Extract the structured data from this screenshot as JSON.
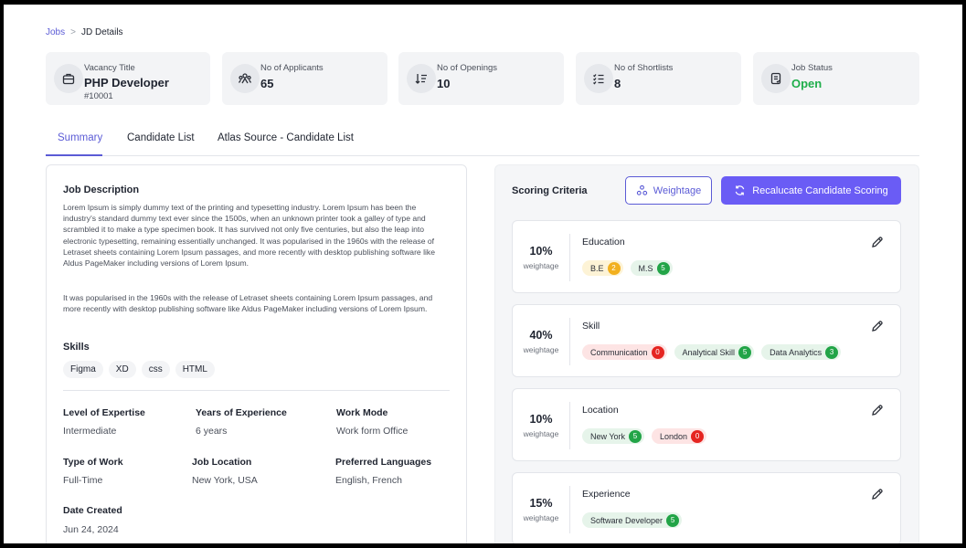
{
  "breadcrumb": {
    "root": "Jobs",
    "separator": ">",
    "current": "JD Details"
  },
  "stats": {
    "vacancy": {
      "label": "Vacancy Title",
      "value": "PHP Developer",
      "sub": "#10001",
      "icon": "briefcase-icon"
    },
    "applicants": {
      "label": "No of Applicants",
      "value": "65",
      "icon": "users-icon"
    },
    "openings": {
      "label": "No of Openings",
      "value": "10",
      "icon": "sort-list-icon"
    },
    "shortlists": {
      "label": "No of Shortlists",
      "value": "8",
      "icon": "checklist-icon"
    },
    "status": {
      "label": "Job Status",
      "value": "Open",
      "icon": "clipboard-icon",
      "color": "#1fae4b"
    }
  },
  "tabs": [
    {
      "label": "Summary",
      "active": true
    },
    {
      "label": "Candidate List",
      "active": false
    },
    {
      "label": "Atlas Source - Candidate List",
      "active": false
    }
  ],
  "job": {
    "description_title": "Job Description",
    "description_p1": "Lorem Ipsum is simply dummy text of the printing and typesetting industry. Lorem Ipsum has been the industry's standard dummy text ever since the 1500s, when an unknown printer took a galley of type and scrambled it to make a type specimen book. It has survived not only five centuries, but also the leap into electronic typesetting, remaining essentially unchanged. It was popularised in the 1960s with the release of Letraset sheets containing Lorem Ipsum passages, and more recently with desktop publishing software like Aldus PageMaker including versions of Lorem Ipsum.",
    "description_p2": "It was popularised in the 1960s with the release of Letraset sheets containing Lorem Ipsum passages, and more recently with desktop publishing software like Aldus PageMaker including versions of Lorem Ipsum.",
    "skills_title": "Skills",
    "skills": [
      "Figma",
      "XD",
      "css",
      "HTML"
    ],
    "fields": {
      "level_label": "Level of Expertise",
      "level_value": "Intermediate",
      "years_label": "Years of Experience",
      "years_value": "6 years",
      "mode_label": "Work Mode",
      "mode_value": "Work form Office",
      "type_label": "Type of Work",
      "type_value": "Full-Time",
      "location_label": "Job Location",
      "location_value": "New York, USA",
      "lang_label": "Preferred Languages",
      "lang_value": "English, French",
      "created_label": "Date Created",
      "created_value": "Jun 24, 2024"
    }
  },
  "scoring": {
    "title": "Scoring Criteria",
    "weightage_label": "Weightage",
    "recalc_label": "Recalucate Candidate Scoring",
    "accent": "#6a5cf5",
    "criteria": [
      {
        "pct": "10%",
        "weight_label": "weightage",
        "name": "Education",
        "tags": [
          {
            "label": "B.E",
            "count": "2",
            "status": "warn"
          },
          {
            "label": "M.S",
            "count": "5",
            "status": "good"
          }
        ]
      },
      {
        "pct": "40%",
        "weight_label": "weightage",
        "name": "Skill",
        "tags": [
          {
            "label": "Communication",
            "count": "0",
            "status": "bad"
          },
          {
            "label": "Analytical Skill",
            "count": "5",
            "status": "good"
          },
          {
            "label": "Data Analytics",
            "count": "3",
            "status": "good"
          }
        ]
      },
      {
        "pct": "10%",
        "weight_label": "weightage",
        "name": "Location",
        "tags": [
          {
            "label": "New York",
            "count": "5",
            "status": "good"
          },
          {
            "label": "London",
            "count": "0",
            "status": "bad"
          }
        ]
      },
      {
        "pct": "15%",
        "weight_label": "weightage",
        "name": "Experience",
        "tags": [
          {
            "label": "Software Developer",
            "count": "5",
            "status": "good"
          }
        ]
      }
    ],
    "status_colors": {
      "good": {
        "bg": "#e6f4ea",
        "badge": "#22a447"
      },
      "warn": {
        "bg": "#fdf3d6",
        "badge": "#f2b01e"
      },
      "bad": {
        "bg": "#fde4e4",
        "badge": "#e52521"
      }
    }
  }
}
